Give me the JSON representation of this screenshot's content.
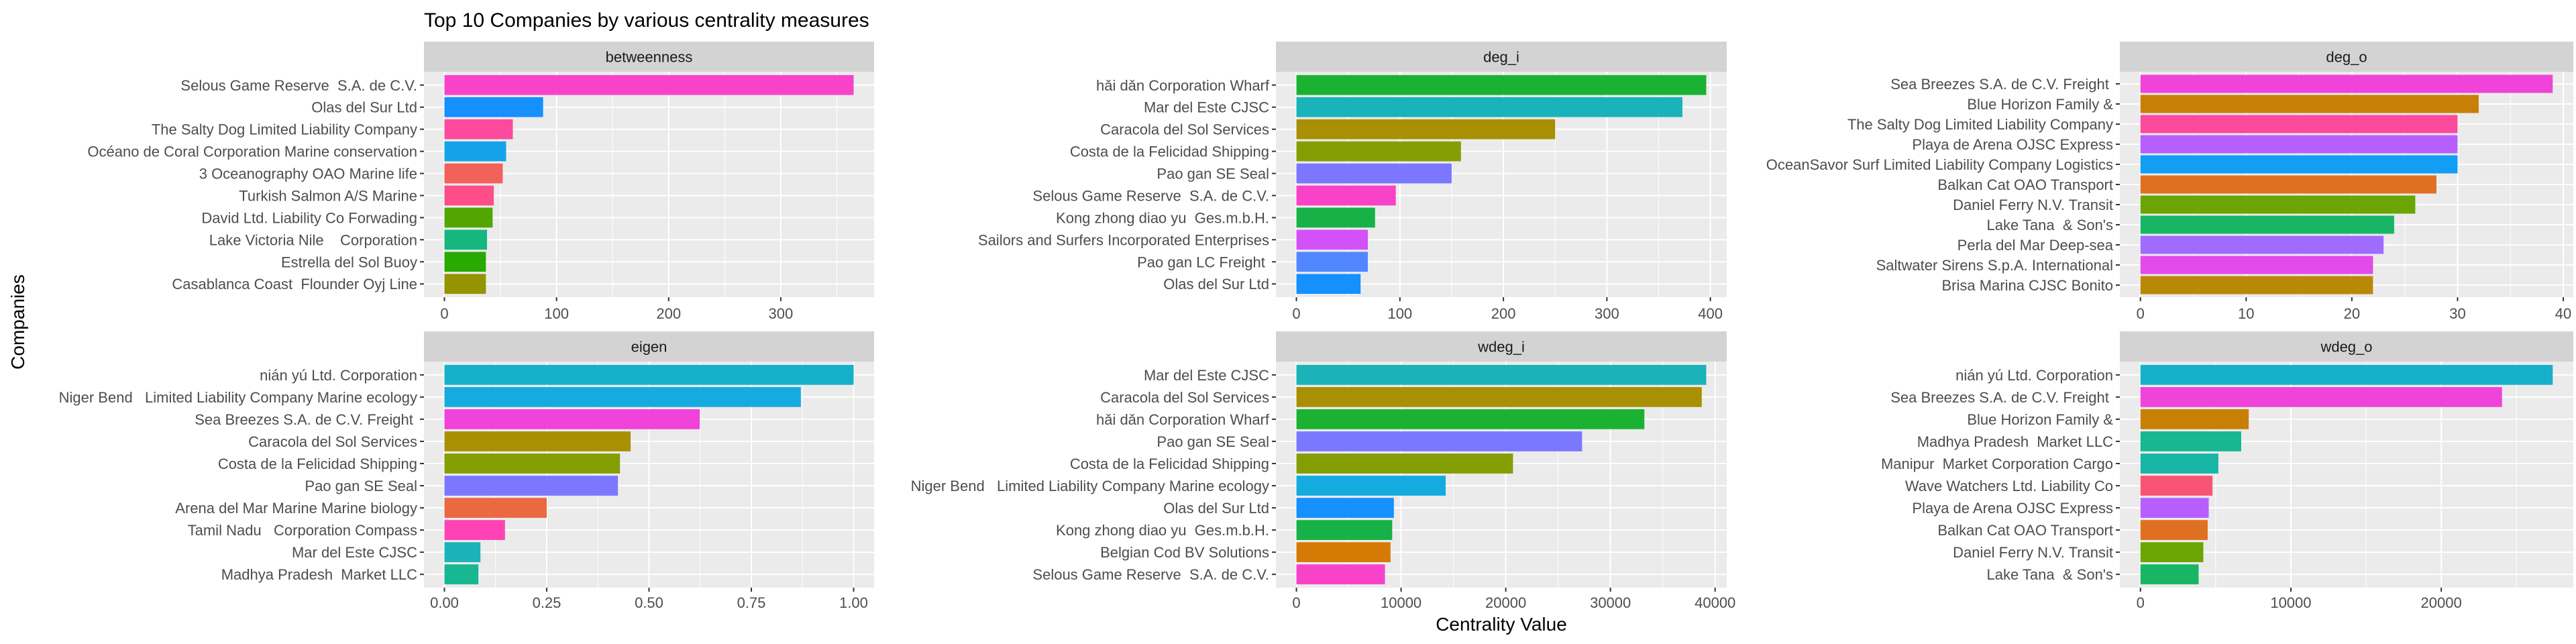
{
  "figure": {
    "title": "Top 10 Companies by various centrality measures",
    "xlabel": "Centrality Value",
    "ylabel": "Companies"
  },
  "chart_data": [
    {
      "type": "bar",
      "orientation": "horizontal",
      "panel": "betweenness",
      "categories": [
        "Selous Game Reserve  S.A. de C.V.",
        "Olas del Sur Ltd",
        "The Salty Dog Limited Liability Company",
        "Océano de Coral Corporation Marine conservation",
        "3 Oceanography OAO Marine life",
        "Turkish Salmon A/S Marine",
        "David Ltd. Liability Co Forwading",
        "Lake Victoria Nile    Corporation",
        "Estrella del Sol Buoy",
        "Casablanca Coast  Flounder Oyj Line"
      ],
      "values": [
        365,
        88,
        61,
        55,
        52,
        44,
        43,
        38,
        37,
        37
      ],
      "colors": [
        "#F843C9",
        "#1590FF",
        "#FC4A9C",
        "#14A3E9",
        "#F2615A",
        "#FE4E8A",
        "#53A600",
        "#16B77F",
        "#28AA00",
        "#949400"
      ],
      "ticks": [
        0,
        100,
        200,
        300
      ],
      "tick_labels": [
        "0",
        "100",
        "200",
        "300"
      ]
    },
    {
      "type": "bar",
      "orientation": "horizontal",
      "panel": "deg_i",
      "categories": [
        "hǎi dǎn Corporation Wharf",
        "Mar del Este CJSC",
        "Caracola del Sol Services",
        "Costa de la Felicidad Shipping",
        "Pao gan SE Seal",
        "Selous Game Reserve  S.A. de C.V.",
        "Kong zhong diao yu  Ges.m.b.H.",
        "Sailors and Surfers Incorporated Enterprises",
        "Pao gan LC Freight ",
        "Olas del Sur Ltd"
      ],
      "values": [
        396,
        373,
        250,
        159,
        150,
        96,
        76,
        69,
        69,
        62
      ],
      "colors": [
        "#1BB232",
        "#1AB3B9",
        "#A88F04",
        "#859E04",
        "#7B78FF",
        "#F843C9",
        "#17B247",
        "#D251F8",
        "#5087FF",
        "#1590FF"
      ],
      "ticks": [
        0,
        100,
        200,
        300,
        400
      ],
      "tick_labels": [
        "0",
        "100",
        "200",
        "300",
        "400"
      ]
    },
    {
      "type": "bar",
      "orientation": "horizontal",
      "panel": "deg_o",
      "categories": [
        "Sea Breezes S.A. de C.V. Freight ",
        "Blue Horizon Family &",
        "The Salty Dog Limited Liability Company",
        "Playa de Arena OJSC Express",
        "OceanSavor Surf Limited Liability Company Logistics",
        "Balkan Cat OAO Transport",
        "Daniel Ferry N.V. Transit",
        "Lake Tana  & Son's",
        "Perla del Mar Deep-sea",
        "Saltwater Sirens S.p.A. International",
        "Brisa Marina CJSC Bonito"
      ],
      "values": [
        39,
        32,
        30,
        30,
        30,
        28,
        26,
        24,
        23,
        22,
        22
      ],
      "colors": [
        "#EF43DA",
        "#C87F05",
        "#FC4A9C",
        "#B75EFF",
        "#129EF5",
        "#E07021",
        "#6BA504",
        "#18B664",
        "#9F6CFF",
        "#E34AEA",
        "#B98806"
      ],
      "ticks": [
        0,
        10,
        20,
        30,
        40
      ],
      "tick_labels": [
        "0",
        "10",
        "20",
        "30",
        "40"
      ]
    },
    {
      "type": "bar",
      "orientation": "horizontal",
      "panel": "eigen",
      "categories": [
        "nián yú Ltd. Corporation",
        "Niger Bend   Limited Liability Company Marine ecology",
        "Sea Breezes S.A. de C.V. Freight ",
        "Caracola del Sol Services",
        "Costa de la Felicidad Shipping",
        "Pao gan SE Seal",
        "Arena del Mar Marine Marine biology",
        "Tamil Nadu   Corporation Compass",
        "Mar del Este CJSC",
        "Madhya Pradesh  Market LLC"
      ],
      "values": [
        1.0,
        0.871,
        0.624,
        0.455,
        0.429,
        0.424,
        0.25,
        0.148,
        0.088,
        0.083
      ],
      "colors": [
        "#17B0CA",
        "#16ABDE",
        "#EF43DA",
        "#A88F04",
        "#859E04",
        "#7B78FF",
        "#EB6841",
        "#FF43B5",
        "#1AB3B9",
        "#17B791"
      ],
      "ticks": [
        0,
        0.25,
        0.5,
        0.75,
        1.0
      ],
      "tick_labels": [
        "0.00",
        "0.25",
        "0.50",
        "0.75",
        "1.00"
      ]
    },
    {
      "type": "bar",
      "orientation": "horizontal",
      "panel": "wdeg_i",
      "categories": [
        "Mar del Este CJSC",
        "Caracola del Sol Services",
        "hǎi dǎn Corporation Wharf",
        "Pao gan SE Seal",
        "Costa de la Felicidad Shipping",
        "Niger Bend   Limited Liability Company Marine ecology",
        "Olas del Sur Ltd",
        "Kong zhong diao yu  Ges.m.b.H.",
        "Belgian Cod BV Solutions",
        "Selous Game Reserve  S.A. de C.V."
      ],
      "values": [
        39150,
        38720,
        33240,
        27290,
        20690,
        14260,
        9310,
        9150,
        8990,
        8460
      ],
      "colors": [
        "#1AB3B9",
        "#A88F04",
        "#1BB232",
        "#7B78FF",
        "#859E04",
        "#16ABDE",
        "#1590FF",
        "#17B247",
        "#D67A06",
        "#F843C9"
      ],
      "ticks": [
        0,
        10000,
        20000,
        30000,
        40000
      ],
      "tick_labels": [
        "0",
        "10000",
        "20000",
        "30000",
        "40000"
      ]
    },
    {
      "type": "bar",
      "orientation": "horizontal",
      "panel": "wdeg_o",
      "categories": [
        "nián yú Ltd. Corporation",
        "Sea Breezes S.A. de C.V. Freight ",
        "Blue Horizon Family &",
        "Madhya Pradesh  Market LLC",
        "Manipur  Market Corporation Cargo",
        "Wave Watchers Ltd. Liability Co",
        "Playa de Arena OJSC Express",
        "Balkan Cat OAO Transport",
        "Daniel Ferry N.V. Transit",
        "Lake Tana  & Son's"
      ],
      "values": [
        27410,
        24040,
        7200,
        6700,
        5180,
        4790,
        4540,
        4470,
        4180,
        3870
      ],
      "colors": [
        "#17B0CA",
        "#EF43DA",
        "#C87F05",
        "#17B791",
        "#18B6A4",
        "#F75573",
        "#B75EFF",
        "#E07021",
        "#6BA504",
        "#18B664"
      ],
      "ticks": [
        0,
        10000,
        20000
      ],
      "tick_labels": [
        "0",
        "10000",
        "20000"
      ]
    }
  ]
}
